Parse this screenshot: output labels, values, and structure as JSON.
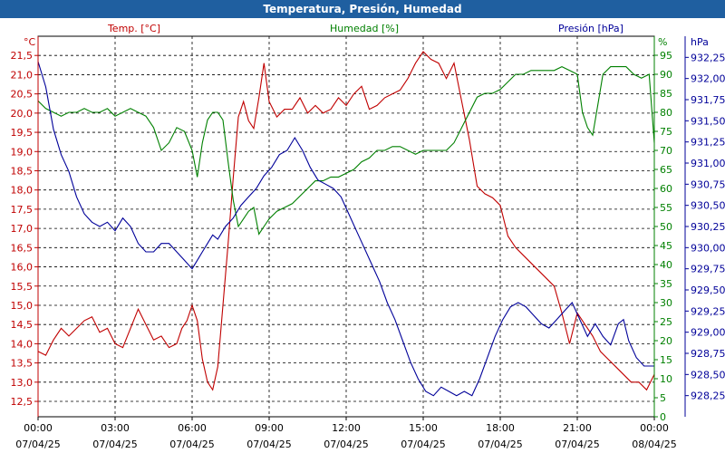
{
  "title": "Temperatura, Presión, Humedad",
  "colors": {
    "temp": "#c00000",
    "hum": "#008000",
    "pres": "#000099",
    "titlebar": "#1f5fa0"
  },
  "chart_data": {
    "type": "line",
    "title": "Temperatura, Presión, Humedad",
    "grid": true,
    "x_ticks": [
      {
        "time": "00:00",
        "date": "07/04/25"
      },
      {
        "time": "03:00",
        "date": "07/04/25"
      },
      {
        "time": "06:00",
        "date": "07/04/25"
      },
      {
        "time": "09:00",
        "date": "07/04/25"
      },
      {
        "time": "12:00",
        "date": "07/04/25"
      },
      {
        "time": "15:00",
        "date": "07/04/25"
      },
      {
        "time": "18:00",
        "date": "07/04/25"
      },
      {
        "time": "21:00",
        "date": "07/04/25"
      },
      {
        "time": "00:00",
        "date": "08/04/25"
      }
    ],
    "xlim": [
      0,
      24
    ],
    "axes": {
      "temp": {
        "label": "Temp. [°C]",
        "unit": "°C",
        "lim": [
          12.1,
          22.0
        ],
        "ticks": [
          "12,5",
          "13,0",
          "13,5",
          "14,0",
          "14,5",
          "15,0",
          "15,5",
          "16,0",
          "16,5",
          "17,0",
          "17,5",
          "18,0",
          "18,5",
          "19,0",
          "19,5",
          "20,0",
          "20,5",
          "21,0",
          "21,5"
        ],
        "tick_values": [
          12.5,
          13.0,
          13.5,
          14.0,
          14.5,
          15.0,
          15.5,
          16.0,
          16.5,
          17.0,
          17.5,
          18.0,
          18.5,
          19.0,
          19.5,
          20.0,
          20.5,
          21.0,
          21.5
        ]
      },
      "hum": {
        "label": "Humedad [%]",
        "unit": "%",
        "lim": [
          0,
          100
        ],
        "ticks": [
          "0",
          "5",
          "10",
          "15",
          "20",
          "25",
          "30",
          "35",
          "40",
          "45",
          "50",
          "55",
          "60",
          "65",
          "70",
          "75",
          "80",
          "85",
          "90",
          "95"
        ],
        "tick_values": [
          0,
          5,
          10,
          15,
          20,
          25,
          30,
          35,
          40,
          45,
          50,
          55,
          60,
          65,
          70,
          75,
          80,
          85,
          90,
          95
        ]
      },
      "pres": {
        "label": "Presión [hPa]",
        "unit": "hPa",
        "lim": [
          928.0,
          932.5
        ],
        "ticks": [
          "928,25",
          "928,50",
          "928,75",
          "929,00",
          "929,25",
          "929,50",
          "929,75",
          "930,00",
          "930,25",
          "930,50",
          "930,75",
          "931,00",
          "931,25",
          "931,50",
          "931,75",
          "932,00",
          "932,25"
        ],
        "tick_values": [
          928.25,
          928.5,
          928.75,
          929.0,
          929.25,
          929.5,
          929.75,
          930.0,
          930.25,
          930.5,
          930.75,
          931.0,
          931.25,
          931.5,
          931.75,
          932.0,
          932.25
        ]
      }
    },
    "series": [
      {
        "name": "Temp. [°C]",
        "axis": "temp",
        "points": [
          [
            0,
            13.8
          ],
          [
            0.3,
            13.7
          ],
          [
            0.6,
            14.1
          ],
          [
            0.9,
            14.4
          ],
          [
            1.2,
            14.2
          ],
          [
            1.5,
            14.4
          ],
          [
            1.8,
            14.6
          ],
          [
            2.1,
            14.7
          ],
          [
            2.4,
            14.3
          ],
          [
            2.7,
            14.4
          ],
          [
            3.0,
            14.0
          ],
          [
            3.3,
            13.9
          ],
          [
            3.6,
            14.4
          ],
          [
            3.9,
            14.9
          ],
          [
            4.2,
            14.5
          ],
          [
            4.5,
            14.1
          ],
          [
            4.8,
            14.2
          ],
          [
            5.1,
            13.9
          ],
          [
            5.4,
            14.0
          ],
          [
            5.6,
            14.4
          ],
          [
            5.8,
            14.6
          ],
          [
            6.0,
            15.0
          ],
          [
            6.2,
            14.6
          ],
          [
            6.4,
            13.6
          ],
          [
            6.6,
            13.0
          ],
          [
            6.8,
            12.8
          ],
          [
            7.0,
            13.4
          ],
          [
            7.2,
            15.0
          ],
          [
            7.4,
            16.6
          ],
          [
            7.6,
            18.3
          ],
          [
            7.8,
            19.9
          ],
          [
            8.0,
            20.3
          ],
          [
            8.2,
            19.8
          ],
          [
            8.4,
            19.6
          ],
          [
            8.6,
            20.4
          ],
          [
            8.8,
            21.3
          ],
          [
            9.0,
            20.3
          ],
          [
            9.3,
            19.9
          ],
          [
            9.6,
            20.1
          ],
          [
            9.9,
            20.1
          ],
          [
            10.2,
            20.4
          ],
          [
            10.5,
            20.0
          ],
          [
            10.8,
            20.2
          ],
          [
            11.1,
            20.0
          ],
          [
            11.4,
            20.1
          ],
          [
            11.7,
            20.4
          ],
          [
            12.0,
            20.2
          ],
          [
            12.3,
            20.5
          ],
          [
            12.6,
            20.7
          ],
          [
            12.9,
            20.1
          ],
          [
            13.2,
            20.2
          ],
          [
            13.5,
            20.4
          ],
          [
            13.8,
            20.5
          ],
          [
            14.1,
            20.6
          ],
          [
            14.4,
            20.9
          ],
          [
            14.7,
            21.3
          ],
          [
            15.0,
            21.6
          ],
          [
            15.3,
            21.4
          ],
          [
            15.6,
            21.3
          ],
          [
            15.9,
            20.9
          ],
          [
            16.2,
            21.3
          ],
          [
            16.5,
            20.3
          ],
          [
            16.8,
            19.3
          ],
          [
            17.1,
            18.1
          ],
          [
            17.4,
            17.9
          ],
          [
            17.7,
            17.8
          ],
          [
            18.0,
            17.6
          ],
          [
            18.3,
            16.8
          ],
          [
            18.6,
            16.5
          ],
          [
            18.9,
            16.3
          ],
          [
            19.2,
            16.1
          ],
          [
            19.5,
            15.9
          ],
          [
            19.8,
            15.7
          ],
          [
            20.1,
            15.5
          ],
          [
            20.4,
            14.8
          ],
          [
            20.7,
            14.0
          ],
          [
            21.0,
            14.8
          ],
          [
            21.3,
            14.5
          ],
          [
            21.6,
            14.2
          ],
          [
            21.9,
            13.8
          ],
          [
            22.2,
            13.6
          ],
          [
            22.5,
            13.4
          ],
          [
            22.8,
            13.2
          ],
          [
            23.1,
            13.0
          ],
          [
            23.4,
            13.0
          ],
          [
            23.7,
            12.8
          ],
          [
            24.0,
            13.2
          ]
        ]
      },
      {
        "name": "Humedad [%]",
        "axis": "hum",
        "points": [
          [
            0,
            83
          ],
          [
            0.3,
            81
          ],
          [
            0.6,
            80
          ],
          [
            0.9,
            79
          ],
          [
            1.2,
            80
          ],
          [
            1.5,
            80
          ],
          [
            1.8,
            81
          ],
          [
            2.1,
            80
          ],
          [
            2.4,
            80
          ],
          [
            2.7,
            81
          ],
          [
            3.0,
            79
          ],
          [
            3.3,
            80
          ],
          [
            3.6,
            81
          ],
          [
            3.9,
            80
          ],
          [
            4.2,
            79
          ],
          [
            4.5,
            76
          ],
          [
            4.8,
            70
          ],
          [
            5.1,
            72
          ],
          [
            5.4,
            76
          ],
          [
            5.7,
            75
          ],
          [
            6.0,
            70
          ],
          [
            6.2,
            63
          ],
          [
            6.4,
            72
          ],
          [
            6.6,
            78
          ],
          [
            6.8,
            80
          ],
          [
            7.0,
            80
          ],
          [
            7.2,
            78
          ],
          [
            7.4,
            67
          ],
          [
            7.6,
            57
          ],
          [
            7.8,
            50
          ],
          [
            8.0,
            52
          ],
          [
            8.2,
            54
          ],
          [
            8.4,
            55
          ],
          [
            8.6,
            48
          ],
          [
            8.8,
            50
          ],
          [
            9.0,
            52
          ],
          [
            9.3,
            54
          ],
          [
            9.6,
            55
          ],
          [
            9.9,
            56
          ],
          [
            10.2,
            58
          ],
          [
            10.5,
            60
          ],
          [
            10.8,
            62
          ],
          [
            11.1,
            62
          ],
          [
            11.4,
            63
          ],
          [
            11.7,
            63
          ],
          [
            12.0,
            64
          ],
          [
            12.3,
            65
          ],
          [
            12.6,
            67
          ],
          [
            12.9,
            68
          ],
          [
            13.2,
            70
          ],
          [
            13.5,
            70
          ],
          [
            13.8,
            71
          ],
          [
            14.1,
            71
          ],
          [
            14.4,
            70
          ],
          [
            14.7,
            69
          ],
          [
            15.0,
            70
          ],
          [
            15.3,
            70
          ],
          [
            15.6,
            70
          ],
          [
            15.9,
            70
          ],
          [
            16.2,
            72
          ],
          [
            16.5,
            76
          ],
          [
            16.8,
            80
          ],
          [
            17.1,
            84
          ],
          [
            17.4,
            85
          ],
          [
            17.7,
            85
          ],
          [
            18.0,
            86
          ],
          [
            18.3,
            88
          ],
          [
            18.6,
            90
          ],
          [
            18.9,
            90
          ],
          [
            19.2,
            91
          ],
          [
            19.5,
            91
          ],
          [
            19.8,
            91
          ],
          [
            20.1,
            91
          ],
          [
            20.4,
            92
          ],
          [
            20.7,
            91
          ],
          [
            21.0,
            90
          ],
          [
            21.2,
            80
          ],
          [
            21.4,
            76
          ],
          [
            21.6,
            74
          ],
          [
            21.8,
            82
          ],
          [
            22.0,
            90
          ],
          [
            22.3,
            92
          ],
          [
            22.6,
            92
          ],
          [
            22.9,
            92
          ],
          [
            23.2,
            90
          ],
          [
            23.5,
            89
          ],
          [
            23.8,
            90
          ],
          [
            24.0,
            72
          ]
        ]
      },
      {
        "name": "Presión [hPa]",
        "axis": "pres",
        "points": [
          [
            0,
            932.2
          ],
          [
            0.3,
            931.9
          ],
          [
            0.6,
            931.4
          ],
          [
            0.9,
            931.1
          ],
          [
            1.2,
            930.9
          ],
          [
            1.5,
            930.6
          ],
          [
            1.8,
            930.4
          ],
          [
            2.1,
            930.3
          ],
          [
            2.4,
            930.25
          ],
          [
            2.7,
            930.3
          ],
          [
            3.0,
            930.2
          ],
          [
            3.3,
            930.35
          ],
          [
            3.6,
            930.25
          ],
          [
            3.9,
            930.05
          ],
          [
            4.2,
            929.95
          ],
          [
            4.5,
            929.95
          ],
          [
            4.8,
            930.05
          ],
          [
            5.1,
            930.05
          ],
          [
            5.4,
            929.95
          ],
          [
            5.7,
            929.85
          ],
          [
            6.0,
            929.75
          ],
          [
            6.2,
            929.85
          ],
          [
            6.4,
            929.95
          ],
          [
            6.6,
            930.05
          ],
          [
            6.8,
            930.15
          ],
          [
            7.0,
            930.1
          ],
          [
            7.3,
            930.25
          ],
          [
            7.6,
            930.35
          ],
          [
            7.9,
            930.5
          ],
          [
            8.2,
            930.6
          ],
          [
            8.5,
            930.7
          ],
          [
            8.8,
            930.85
          ],
          [
            9.1,
            930.95
          ],
          [
            9.4,
            931.1
          ],
          [
            9.7,
            931.15
          ],
          [
            10.0,
            931.3
          ],
          [
            10.3,
            931.15
          ],
          [
            10.6,
            930.95
          ],
          [
            10.9,
            930.8
          ],
          [
            11.2,
            930.75
          ],
          [
            11.5,
            930.7
          ],
          [
            11.8,
            930.6
          ],
          [
            12.1,
            930.4
          ],
          [
            12.4,
            930.2
          ],
          [
            12.7,
            930.0
          ],
          [
            13.0,
            929.8
          ],
          [
            13.3,
            929.6
          ],
          [
            13.6,
            929.35
          ],
          [
            13.9,
            929.15
          ],
          [
            14.2,
            928.9
          ],
          [
            14.5,
            928.65
          ],
          [
            14.8,
            928.45
          ],
          [
            15.1,
            928.3
          ],
          [
            15.4,
            928.25
          ],
          [
            15.7,
            928.35
          ],
          [
            16.0,
            928.3
          ],
          [
            16.3,
            928.25
          ],
          [
            16.6,
            928.3
          ],
          [
            16.9,
            928.25
          ],
          [
            17.2,
            928.45
          ],
          [
            17.5,
            928.7
          ],
          [
            17.8,
            928.95
          ],
          [
            18.1,
            929.15
          ],
          [
            18.4,
            929.3
          ],
          [
            18.7,
            929.35
          ],
          [
            19.0,
            929.3
          ],
          [
            19.3,
            929.2
          ],
          [
            19.6,
            929.1
          ],
          [
            19.9,
            929.05
          ],
          [
            20.2,
            929.15
          ],
          [
            20.5,
            929.25
          ],
          [
            20.8,
            929.35
          ],
          [
            21.1,
            929.15
          ],
          [
            21.4,
            928.95
          ],
          [
            21.7,
            929.1
          ],
          [
            22.0,
            928.95
          ],
          [
            22.3,
            928.85
          ],
          [
            22.6,
            929.1
          ],
          [
            22.8,
            929.15
          ],
          [
            23.0,
            928.9
          ],
          [
            23.3,
            928.7
          ],
          [
            23.6,
            928.6
          ],
          [
            24.0,
            928.6
          ]
        ]
      }
    ]
  }
}
